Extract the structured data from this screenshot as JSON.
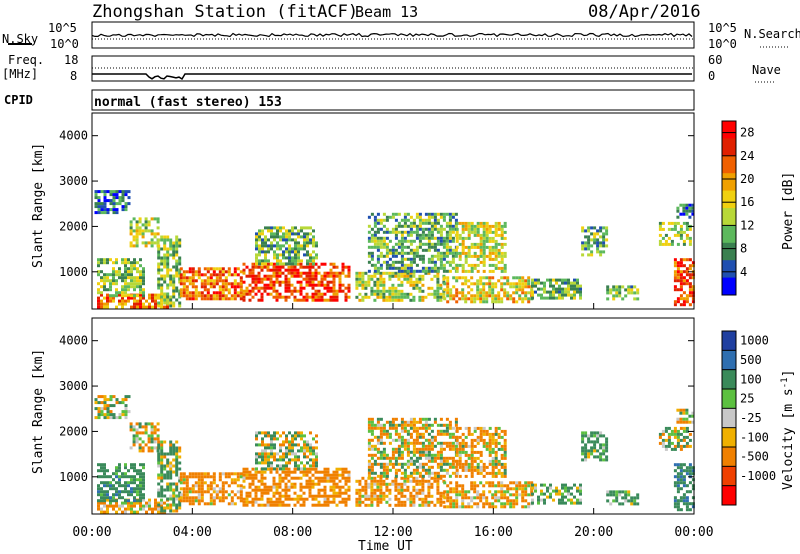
{
  "header": {
    "station": "Zhongshan Station (fitACF)",
    "beam": "Beam 13",
    "date": "08/Apr/2016"
  },
  "panels": {
    "nsky": {
      "left_label": "N.Sky",
      "right_label": "N.Search",
      "left_ticks": [
        "10^5",
        "10^0"
      ],
      "right_ticks": [
        "10^5",
        "10^0"
      ]
    },
    "freq": {
      "left_label": "Freq.",
      "left_unit": "[MHz]",
      "left_ticks": [
        "18",
        "8"
      ],
      "right_label": "Nave",
      "right_ticks": [
        "60",
        "0"
      ]
    },
    "cpid": {
      "label": "CPID",
      "text": "normal (fast stereo) 153"
    }
  },
  "power_bar": {
    "label": "Power [dB]",
    "ticks": [
      "28",
      "24",
      "20",
      "16",
      "12",
      "8",
      "4"
    ]
  },
  "velocity_bar": {
    "label": "Velocity [m s",
    "label_sup": "-1",
    "label_end": "]",
    "ticks": [
      "1000",
      "500",
      "100",
      "25",
      "-25",
      "-100",
      "-500",
      "-1000"
    ]
  },
  "chart_data": {
    "type": "heatmap",
    "xlabel": "Time UT",
    "ylabel": "Slant Range [km]",
    "x_ticks": [
      "00:00",
      "04:00",
      "08:00",
      "12:00",
      "16:00",
      "20:00",
      "00:00"
    ],
    "y_ticks": [
      "1000",
      "2000",
      "3000",
      "4000"
    ],
    "xlim_hours": [
      0,
      24
    ],
    "ylim_km": [
      180,
      4500
    ],
    "power_scale": {
      "range_db": [
        0,
        30
      ],
      "colors": [
        "#0000ff",
        "#1f4fb0",
        "#3a8050",
        "#5cb85c",
        "#b8d838",
        "#f0d010",
        "#f0a000",
        "#f06000",
        "#e02000",
        "#ff0000"
      ]
    },
    "velocity_scale": {
      "levels": [
        1000,
        500,
        100,
        25,
        -25,
        -100,
        -500,
        -1000
      ],
      "colors": [
        "#1f3fa0",
        "#2f6fb0",
        "#3a8a5a",
        "#5cc040",
        "#c8c8c8",
        "#f0b000",
        "#f08000",
        "#f04000",
        "#ff0000"
      ]
    },
    "echo_regions": [
      {
        "t0": 0.1,
        "t1": 1.5,
        "r0": 2300,
        "r1": 2800,
        "power": 6,
        "velocity": 0
      },
      {
        "t0": 0.2,
        "t1": 3.0,
        "r0": 250,
        "r1": 520,
        "power": 22,
        "velocity": -150
      },
      {
        "t0": 0.2,
        "t1": 2.0,
        "r0": 500,
        "r1": 1300,
        "power": 12,
        "velocity": 300
      },
      {
        "t0": 1.5,
        "t1": 2.6,
        "r0": 1600,
        "r1": 2200,
        "power": 14,
        "velocity": -80
      },
      {
        "t0": 2.6,
        "t1": 3.5,
        "r0": 250,
        "r1": 1800,
        "power": 12,
        "velocity": 120
      },
      {
        "t0": 3.5,
        "t1": 6.0,
        "r0": 400,
        "r1": 1100,
        "power": 22,
        "velocity": -200
      },
      {
        "t0": 6.0,
        "t1": 10.2,
        "r0": 400,
        "r1": 1200,
        "power": 25,
        "velocity": -250
      },
      {
        "t0": 6.5,
        "t1": 9.0,
        "r0": 1200,
        "r1": 2000,
        "power": 11,
        "velocity": 60
      },
      {
        "t0": 10.5,
        "t1": 14.0,
        "r0": 350,
        "r1": 1000,
        "power": 13,
        "velocity": -180
      },
      {
        "t0": 11.0,
        "t1": 14.5,
        "r0": 1000,
        "r1": 2300,
        "power": 10,
        "velocity": -60
      },
      {
        "t0": 14.0,
        "t1": 17.5,
        "r0": 350,
        "r1": 900,
        "power": 16,
        "velocity": -150
      },
      {
        "t0": 14.5,
        "t1": 16.5,
        "r0": 1000,
        "r1": 2100,
        "power": 15,
        "velocity": -120
      },
      {
        "t0": 17.5,
        "t1": 19.5,
        "r0": 450,
        "r1": 850,
        "power": 11,
        "velocity": 150
      },
      {
        "t0": 19.5,
        "t1": 20.5,
        "r0": 1400,
        "r1": 2000,
        "power": 10,
        "velocity": 200
      },
      {
        "t0": 20.5,
        "t1": 21.8,
        "r0": 400,
        "r1": 700,
        "power": 11,
        "velocity": 200
      },
      {
        "t0": 22.6,
        "t1": 23.8,
        "r0": 1600,
        "r1": 2100,
        "power": 13,
        "velocity": 60
      },
      {
        "t0": 23.2,
        "t1": 24.0,
        "r0": 300,
        "r1": 1300,
        "power": 24,
        "velocity": 400
      },
      {
        "t0": 23.3,
        "t1": 24.0,
        "r0": 2200,
        "r1": 2500,
        "power": 6,
        "velocity": 0
      }
    ]
  }
}
